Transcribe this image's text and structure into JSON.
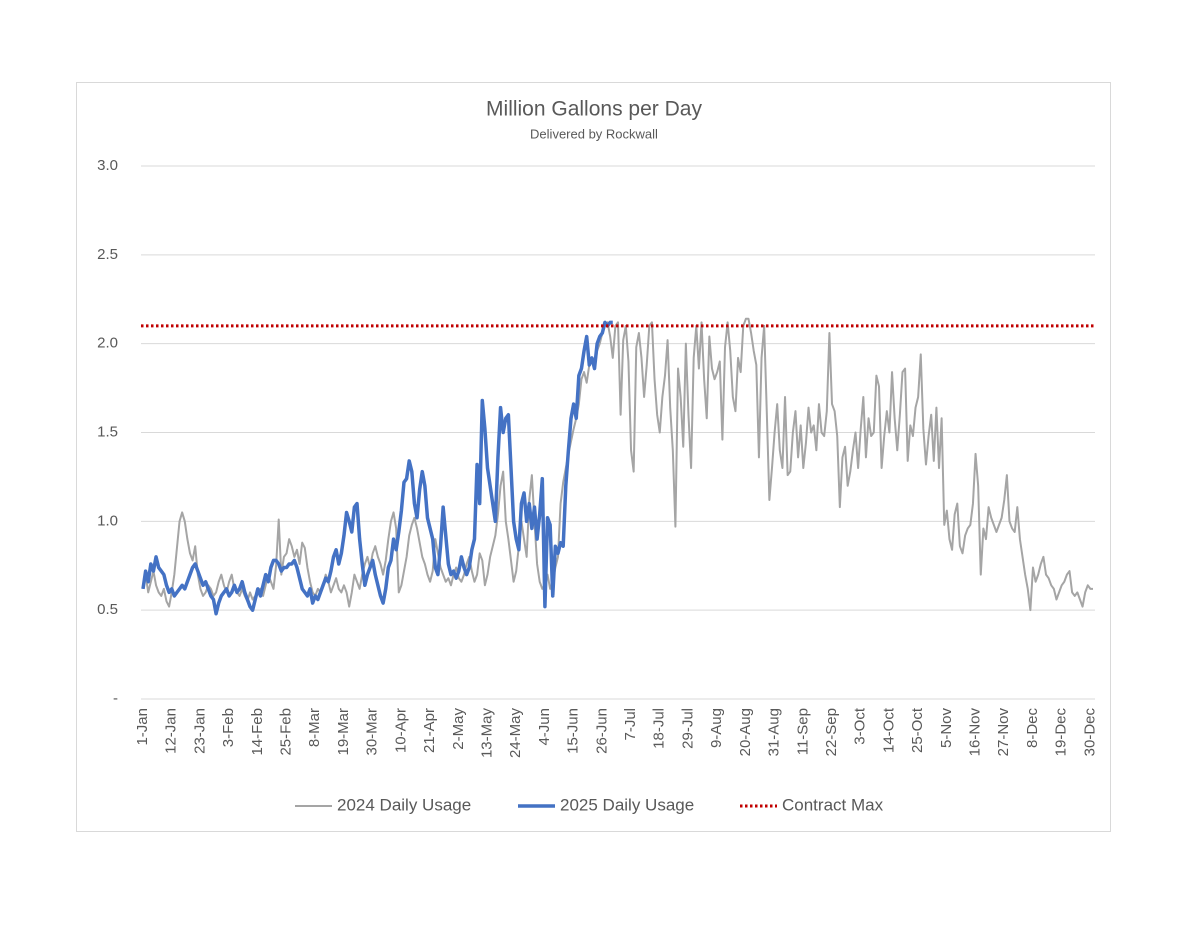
{
  "chart_data": {
    "type": "line",
    "title": "Million Gallons per Day",
    "subtitle": "Delivered by Rockwall",
    "categories": [
      "1-Jan",
      null,
      null,
      null,
      null,
      null,
      null,
      null,
      null,
      null,
      null,
      "12-Jan",
      null,
      null,
      null,
      null,
      null,
      null,
      null,
      null,
      null,
      null,
      "23-Jan",
      null,
      null,
      null,
      null,
      null,
      null,
      null,
      null,
      null,
      null,
      "3-Feb",
      null,
      null,
      null,
      null,
      null,
      null,
      null,
      null,
      null,
      null,
      "14-Feb",
      null,
      null,
      null,
      null,
      null,
      null,
      null,
      null,
      null,
      null,
      "25-Feb",
      null,
      null,
      null,
      null,
      null,
      null,
      null,
      null,
      null,
      null,
      "8-Mar",
      null,
      null,
      null,
      null,
      null,
      null,
      null,
      null,
      null,
      null,
      "19-Mar",
      null,
      null,
      null,
      null,
      null,
      null,
      null,
      null,
      null,
      null,
      "30-Mar",
      null,
      null,
      null,
      null,
      null,
      null,
      null,
      null,
      null,
      null,
      "10-Apr",
      null,
      null,
      null,
      null,
      null,
      null,
      null,
      null,
      null,
      null,
      "21-Apr",
      null,
      null,
      null,
      null,
      null,
      null,
      null,
      null,
      null,
      null,
      "2-May",
      null,
      null,
      null,
      null,
      null,
      null,
      null,
      null,
      null,
      null,
      "13-May",
      null,
      null,
      null,
      null,
      null,
      null,
      null,
      null,
      null,
      null,
      "24-May",
      null,
      null,
      null,
      null,
      null,
      null,
      null,
      null,
      null,
      null,
      "4-Jun",
      null,
      null,
      null,
      null,
      null,
      null,
      null,
      null,
      null,
      null,
      "15-Jun",
      null,
      null,
      null,
      null,
      null,
      null,
      null,
      null,
      null,
      null,
      "26-Jun",
      null,
      null,
      null,
      null,
      null,
      null,
      null,
      null,
      null,
      null,
      "7-Jul",
      null,
      null,
      null,
      null,
      null,
      null,
      null,
      null,
      null,
      null,
      "18-Jul",
      null,
      null,
      null,
      null,
      null,
      null,
      null,
      null,
      null,
      null,
      "29-Jul",
      null,
      null,
      null,
      null,
      null,
      null,
      null,
      null,
      null,
      null,
      "9-Aug",
      null,
      null,
      null,
      null,
      null,
      null,
      null,
      null,
      null,
      null,
      "20-Aug",
      null,
      null,
      null,
      null,
      null,
      null,
      null,
      null,
      null,
      null,
      "31-Aug",
      null,
      null,
      null,
      null,
      null,
      null,
      null,
      null,
      null,
      null,
      "11-Sep",
      null,
      null,
      null,
      null,
      null,
      null,
      null,
      null,
      null,
      null,
      "22-Sep",
      null,
      null,
      null,
      null,
      null,
      null,
      null,
      null,
      null,
      null,
      "3-Oct",
      null,
      null,
      null,
      null,
      null,
      null,
      null,
      null,
      null,
      null,
      "14-Oct",
      null,
      null,
      null,
      null,
      null,
      null,
      null,
      null,
      null,
      null,
      "25-Oct",
      null,
      null,
      null,
      null,
      null,
      null,
      null,
      null,
      null,
      null,
      "5-Nov",
      null,
      null,
      null,
      null,
      null,
      null,
      null,
      null,
      null,
      null,
      "16-Nov",
      null,
      null,
      null,
      null,
      null,
      null,
      null,
      null,
      null,
      null,
      "27-Nov",
      null,
      null,
      null,
      null,
      null,
      null,
      null,
      null,
      null,
      null,
      "8-Dec",
      null,
      null,
      null,
      null,
      null,
      null,
      null,
      null,
      null,
      null,
      "19-Dec",
      null,
      null,
      null,
      null,
      null,
      null,
      null,
      null,
      null,
      null,
      "30-Dec",
      null
    ],
    "series": [
      {
        "name": "2024 Daily Usage",
        "color": "#a5a5a5",
        "width": 2,
        "values": [
          0.62,
          0.7,
          0.6,
          0.66,
          0.72,
          0.64,
          0.6,
          0.58,
          0.62,
          0.55,
          0.52,
          0.6,
          0.7,
          0.85,
          1.0,
          1.05,
          1.0,
          0.9,
          0.82,
          0.78,
          0.86,
          0.7,
          0.62,
          0.58,
          0.6,
          0.64,
          0.62,
          0.58,
          0.6,
          0.66,
          0.7,
          0.64,
          0.6,
          0.66,
          0.7,
          0.62,
          0.6,
          0.58,
          0.62,
          0.58,
          0.55,
          0.6,
          0.56,
          0.58,
          0.6,
          0.62,
          0.58,
          0.64,
          0.7,
          0.66,
          0.62,
          0.75,
          1.01,
          0.7,
          0.8,
          0.82,
          0.9,
          0.86,
          0.8,
          0.84,
          0.76,
          0.88,
          0.85,
          0.74,
          0.66,
          0.6,
          0.58,
          0.62,
          0.6,
          0.64,
          0.7,
          0.66,
          0.6,
          0.64,
          0.68,
          0.62,
          0.6,
          0.64,
          0.6,
          0.52,
          0.6,
          0.7,
          0.66,
          0.62,
          0.7,
          0.76,
          0.8,
          0.74,
          0.82,
          0.86,
          0.8,
          0.76,
          0.7,
          0.78,
          0.9,
          1.0,
          1.05,
          0.96,
          0.6,
          0.64,
          0.72,
          0.8,
          0.92,
          0.98,
          1.02,
          0.96,
          0.88,
          0.8,
          0.76,
          0.7,
          0.66,
          0.72,
          0.9,
          0.82,
          0.74,
          0.7,
          0.66,
          0.68,
          0.64,
          0.7,
          0.74,
          0.68,
          0.66,
          0.7,
          0.76,
          0.8,
          0.72,
          0.66,
          0.7,
          0.82,
          0.78,
          0.64,
          0.7,
          0.8,
          0.86,
          0.92,
          1.04,
          1.2,
          1.28,
          1.0,
          0.9,
          0.78,
          0.66,
          0.72,
          0.86,
          1.0,
          0.9,
          0.8,
          1.12,
          1.26,
          1.0,
          0.76,
          0.66,
          0.62,
          0.64,
          0.7,
          0.62,
          0.66,
          0.74,
          0.8,
          1.1,
          1.22,
          1.3,
          1.38,
          1.45,
          1.52,
          1.58,
          1.66,
          1.8,
          1.84,
          1.78,
          1.88,
          1.92,
          1.86,
          1.96,
          2.0,
          2.06,
          2.1,
          2.12,
          2.04,
          1.92,
          2.1,
          2.12,
          1.6,
          2.02,
          2.1,
          1.9,
          1.4,
          1.28,
          1.98,
          2.06,
          1.92,
          1.7,
          1.88,
          2.1,
          2.12,
          1.8,
          1.6,
          1.5,
          1.7,
          1.82,
          2.02,
          1.64,
          1.4,
          0.97,
          1.86,
          1.7,
          1.42,
          2.0,
          1.6,
          1.3,
          1.92,
          2.1,
          1.86,
          2.12,
          1.8,
          1.58,
          2.04,
          1.86,
          1.8,
          1.84,
          1.9,
          1.46,
          1.98,
          2.12,
          1.96,
          1.7,
          1.62,
          1.92,
          1.84,
          2.1,
          2.14,
          2.14,
          2.06,
          1.96,
          1.88,
          1.36,
          1.92,
          2.1,
          1.62,
          1.12,
          1.3,
          1.5,
          1.66,
          1.4,
          1.3,
          1.7,
          1.26,
          1.28,
          1.5,
          1.62,
          1.36,
          1.54,
          1.3,
          1.44,
          1.64,
          1.5,
          1.54,
          1.4,
          1.66,
          1.5,
          1.48,
          1.62,
          2.06,
          1.66,
          1.62,
          1.48,
          1.08,
          1.36,
          1.42,
          1.2,
          1.28,
          1.4,
          1.5,
          1.3,
          1.52,
          1.7,
          1.36,
          1.58,
          1.48,
          1.5,
          1.82,
          1.76,
          1.3,
          1.48,
          1.62,
          1.5,
          1.84,
          1.58,
          1.4,
          1.6,
          1.84,
          1.86,
          1.34,
          1.54,
          1.48,
          1.64,
          1.7,
          1.94,
          1.52,
          1.32,
          1.48,
          1.6,
          1.34,
          1.64,
          1.3,
          1.58,
          0.98,
          1.06,
          0.9,
          0.84,
          1.04,
          1.1,
          0.86,
          0.82,
          0.92,
          0.96,
          0.98,
          1.1,
          1.38,
          1.2,
          0.7,
          0.96,
          0.9,
          1.08,
          1.02,
          0.98,
          0.94,
          0.98,
          1.02,
          1.12,
          1.26,
          1.0,
          0.96,
          0.94,
          1.08,
          0.9,
          0.8,
          0.7,
          0.62,
          0.5,
          0.74,
          0.66,
          0.7,
          0.76,
          0.8,
          0.7,
          0.68,
          0.64,
          0.62,
          0.56,
          0.6,
          0.64,
          0.66,
          0.7,
          0.72,
          0.6,
          0.58,
          0.6,
          0.56,
          0.52,
          0.6,
          0.64,
          0.62,
          0.62
        ]
      },
      {
        "name": "2025 Daily Usage",
        "color": "#4472c4",
        "width": 3.5,
        "values": [
          0.62,
          0.72,
          0.66,
          0.76,
          0.72,
          0.8,
          0.74,
          0.72,
          0.7,
          0.64,
          0.6,
          0.62,
          0.58,
          0.6,
          0.62,
          0.64,
          0.62,
          0.66,
          0.7,
          0.74,
          0.76,
          0.72,
          0.68,
          0.64,
          0.66,
          0.62,
          0.58,
          0.56,
          0.48,
          0.54,
          0.58,
          0.6,
          0.62,
          0.58,
          0.6,
          0.64,
          0.6,
          0.62,
          0.66,
          0.6,
          0.56,
          0.52,
          0.5,
          0.56,
          0.62,
          0.58,
          0.64,
          0.7,
          0.66,
          0.74,
          0.78,
          0.78,
          0.76,
          0.72,
          0.74,
          0.74,
          0.76,
          0.76,
          0.78,
          0.74,
          0.68,
          0.62,
          0.6,
          0.58,
          0.62,
          0.54,
          0.58,
          0.56,
          0.6,
          0.64,
          0.68,
          0.66,
          0.72,
          0.8,
          0.84,
          0.76,
          0.82,
          0.92,
          1.05,
          1.0,
          0.94,
          1.08,
          1.1,
          0.9,
          0.76,
          0.64,
          0.7,
          0.74,
          0.78,
          0.7,
          0.64,
          0.58,
          0.54,
          0.62,
          0.74,
          0.78,
          0.9,
          0.84,
          0.94,
          1.06,
          1.22,
          1.24,
          1.34,
          1.28,
          1.1,
          1.02,
          1.18,
          1.28,
          1.2,
          1.02,
          0.96,
          0.9,
          0.74,
          0.7,
          0.86,
          1.08,
          0.92,
          0.76,
          0.7,
          0.72,
          0.68,
          0.72,
          0.8,
          0.74,
          0.7,
          0.74,
          0.84,
          0.9,
          1.32,
          1.1,
          1.68,
          1.52,
          1.3,
          1.2,
          1.1,
          1.0,
          1.36,
          1.64,
          1.5,
          1.58,
          1.6,
          1.3,
          1.0,
          0.9,
          0.84,
          1.1,
          1.16,
          1.0,
          1.1,
          0.96,
          1.08,
          0.9,
          1.04,
          1.24,
          0.52,
          1.02,
          0.98,
          0.58,
          0.86,
          0.82,
          0.88,
          0.86,
          1.2,
          1.4,
          1.58,
          1.66,
          1.58,
          1.82,
          1.86,
          1.96,
          2.04,
          1.88,
          1.92,
          1.86,
          2.0,
          2.04,
          2.06,
          2.12,
          2.1,
          2.12,
          2.12,
          null,
          null,
          null,
          null,
          null,
          null,
          null,
          null,
          null,
          null,
          null,
          null,
          null,
          null,
          null,
          null,
          null,
          null,
          null,
          null,
          null,
          null,
          null,
          null,
          null,
          null,
          null,
          null,
          null,
          null,
          null,
          null,
          null,
          null,
          null,
          null,
          null,
          null,
          null,
          null,
          null,
          null,
          null,
          null,
          null,
          null,
          null,
          null,
          null,
          null,
          null,
          null,
          null,
          null,
          null,
          null,
          null,
          null,
          null,
          null,
          null,
          null,
          null,
          null,
          null,
          null,
          null,
          null,
          null,
          null,
          null,
          null,
          null,
          null,
          null,
          null,
          null,
          null,
          null,
          null,
          null,
          null,
          null,
          null,
          null,
          null,
          null,
          null,
          null,
          null,
          null,
          null,
          null,
          null,
          null,
          null,
          null,
          null,
          null,
          null,
          null,
          null,
          null,
          null,
          null,
          null,
          null,
          null,
          null,
          null,
          null,
          null,
          null,
          null,
          null,
          null,
          null,
          null,
          null,
          null,
          null,
          null,
          null,
          null,
          null,
          null,
          null,
          null,
          null,
          null,
          null,
          null,
          null,
          null,
          null,
          null,
          null,
          null,
          null,
          null,
          null,
          null,
          null,
          null,
          null,
          null,
          null,
          null,
          null,
          null,
          null,
          null,
          null,
          null,
          null,
          null,
          null,
          null,
          null,
          null,
          null,
          null,
          null,
          null,
          null,
          null,
          null,
          null,
          null,
          null,
          null,
          null,
          null,
          null,
          null,
          null,
          null,
          null,
          null,
          null,
          null,
          null,
          null,
          null
        ]
      },
      {
        "name": "Contract Max",
        "color": "#c00000",
        "width": 3,
        "dash": "dotted",
        "value": 2.1
      }
    ],
    "ylim": [
      0,
      3
    ],
    "yticks": [
      {
        "value": 0,
        "label": "-"
      },
      0.5,
      {
        "value": 1,
        "label": "1.0"
      },
      1.5,
      {
        "value": 2,
        "label": "2.0"
      },
      2.5,
      {
        "value": 3,
        "label": "3.0"
      }
    ],
    "grid": true,
    "legend": "bottom"
  }
}
